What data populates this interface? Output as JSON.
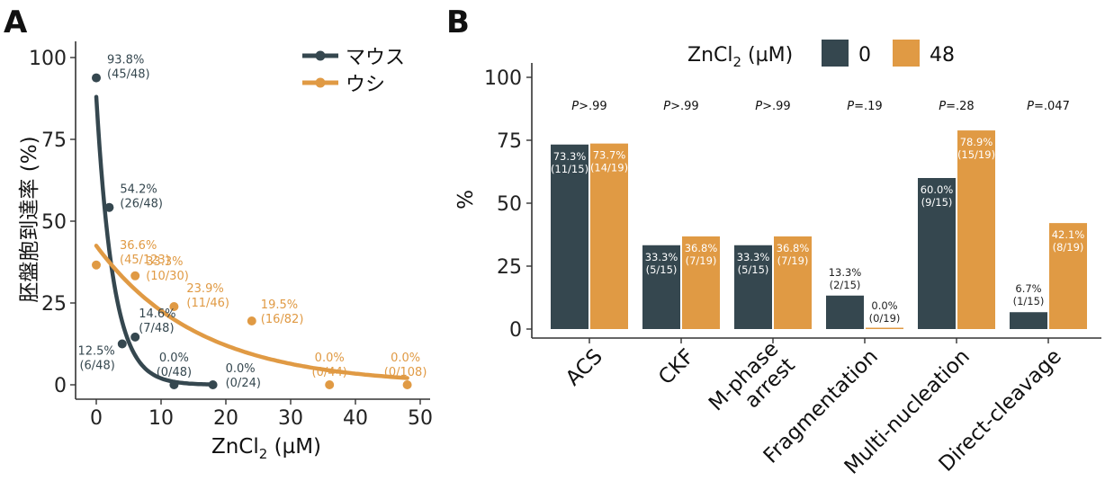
{
  "colors": {
    "mouse": "#35474f",
    "bovine": "#e09a44",
    "axis": "#333333"
  },
  "chart_data": [
    {
      "panel": "A",
      "type": "scatter",
      "xlabel_main": "ZnCl",
      "xlabel_sub": "2",
      "xlabel_unit": " (µM)",
      "ylabel": "胚盤胞到達率 (%)",
      "xlim": [
        0,
        50
      ],
      "ylim": [
        0,
        100
      ],
      "xticks": [
        "0",
        "10",
        "20",
        "30",
        "40",
        "50"
      ],
      "yticks": [
        "0",
        "25",
        "50",
        "75",
        "100"
      ],
      "legend_position": "top-right",
      "series": [
        {
          "name": "マウス",
          "points": [
            {
              "x": 0,
              "y": 93.8,
              "label1": "93.8%",
              "label2": "(45/48)"
            },
            {
              "x": 2,
              "y": 54.2,
              "label1": "54.2%",
              "label2": "(26/48)"
            },
            {
              "x": 4,
              "y": 12.5,
              "label1": "12.5%",
              "label2": "(6/48)"
            },
            {
              "x": 6,
              "y": 14.6,
              "label1": "14.6%",
              "label2": "(7/48)"
            },
            {
              "x": 12,
              "y": 0.0,
              "label1": "0.0%",
              "label2": "(0/48)"
            },
            {
              "x": 18,
              "y": 0.0,
              "label1": "0.0%",
              "label2": "(0/24)"
            }
          ]
        },
        {
          "name": "ウシ",
          "points": [
            {
              "x": 0,
              "y": 36.6,
              "label1": "36.6%",
              "label2": "(45/123)"
            },
            {
              "x": 6,
              "y": 33.3,
              "label1": "33.3%",
              "label2": "(10/30)"
            },
            {
              "x": 12,
              "y": 23.9,
              "label1": "23.9%",
              "label2": "(11/46)"
            },
            {
              "x": 24,
              "y": 19.5,
              "label1": "19.5%",
              "label2": "(16/82)"
            },
            {
              "x": 36,
              "y": 0.0,
              "label1": "0.0%",
              "label2": "(0/44)"
            },
            {
              "x": 48,
              "y": 0.0,
              "label1": "0.0%",
              "label2": "(0/108)"
            }
          ]
        }
      ]
    },
    {
      "panel": "B",
      "type": "bar",
      "ylabel": "%",
      "ylim": [
        0,
        100
      ],
      "yticks": [
        "0",
        "25",
        "50",
        "75",
        "100"
      ],
      "legend_title_main": "ZnCl",
      "legend_title_sub": "2",
      "legend_title_unit": " (µM)",
      "legend_position": "top",
      "categories": [
        "ACS",
        "CKF",
        "M-phase arrest",
        "Fragmentation",
        "Multi-nucleation",
        "Direct-cleavage"
      ],
      "category_lines": [
        [
          "ACS"
        ],
        [
          "CKF"
        ],
        [
          "M-phase",
          "arrest"
        ],
        [
          "Fragmentation"
        ],
        [
          "Multi-nucleation"
        ],
        [
          "Direct-cleavage"
        ]
      ],
      "pvalue_prefix": "P",
      "pvalues": [
        ">.99",
        ">.99",
        ">.99",
        "=.19",
        "=.28",
        "=.047"
      ],
      "series": [
        {
          "name": "0",
          "values": [
            73.3,
            33.3,
            33.3,
            13.3,
            60.0,
            6.7
          ],
          "labels1": [
            "73.3%",
            "33.3%",
            "33.3%",
            "13.3%",
            "60.0%",
            "6.7%"
          ],
          "labels2": [
            "(11/15)",
            "(5/15)",
            "(5/15)",
            "(2/15)",
            "(9/15)",
            "(1/15)"
          ]
        },
        {
          "name": "48",
          "values": [
            73.7,
            36.8,
            36.8,
            0.0,
            78.9,
            42.1
          ],
          "labels1": [
            "73.7%",
            "36.8%",
            "36.8%",
            "0.0%",
            "78.9%",
            "42.1%"
          ],
          "labels2": [
            "(14/19)",
            "(7/19)",
            "(7/19)",
            "(0/19)",
            "(15/19)",
            "(8/19)"
          ]
        }
      ]
    }
  ]
}
